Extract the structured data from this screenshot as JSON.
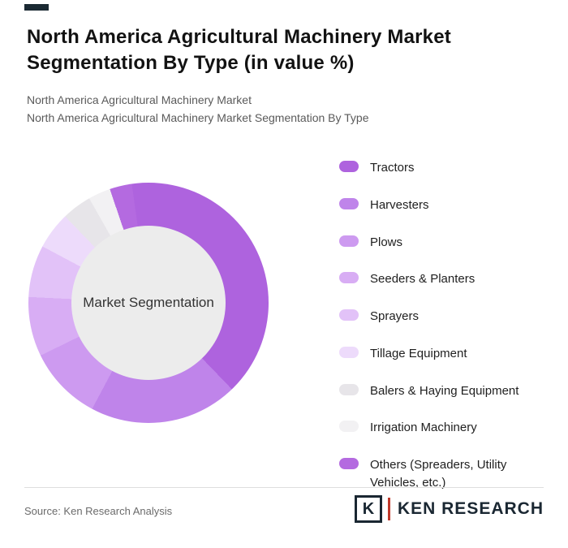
{
  "page": {
    "title": "North America Agricultural Machinery Market Segmentation By Type (in value %)",
    "subtitle_1": "North America Agricultural Machinery Market",
    "subtitle_2": "North America Agricultural Machinery Market Segmentation By Type"
  },
  "chart_data": {
    "type": "pie",
    "donut": true,
    "title": "North America Agricultural Machinery Market Segmentation By Type (in value %)",
    "center_label": "Market Segmentation",
    "legend_position": "right",
    "start_angle_deg": -8,
    "series": [
      {
        "name": "Tractors",
        "value": 40,
        "color": "#ae63de"
      },
      {
        "name": "Harvesters",
        "value": 20,
        "color": "#bf84ea"
      },
      {
        "name": "Plows",
        "value": 10,
        "color": "#cd9af0"
      },
      {
        "name": "Seeders & Planters",
        "value": 8,
        "color": "#d8adf4"
      },
      {
        "name": "Sprayers",
        "value": 7,
        "color": "#e2c2f8"
      },
      {
        "name": "Tillage Equipment",
        "value": 5,
        "color": "#eddbfb"
      },
      {
        "name": "Balers & Haying Equipment",
        "value": 4,
        "color": "#e7e5e9"
      },
      {
        "name": "Irrigation Machinery",
        "value": 3,
        "color": "#f2f1f3"
      },
      {
        "name": "Others (Spreaders, Utility Vehicles, etc.)",
        "value": 3,
        "color": "#b46ae0"
      }
    ]
  },
  "footer": {
    "source": "Source: Ken Research Analysis",
    "logo_letter": "K",
    "logo_text": "KEN RESEARCH"
  }
}
